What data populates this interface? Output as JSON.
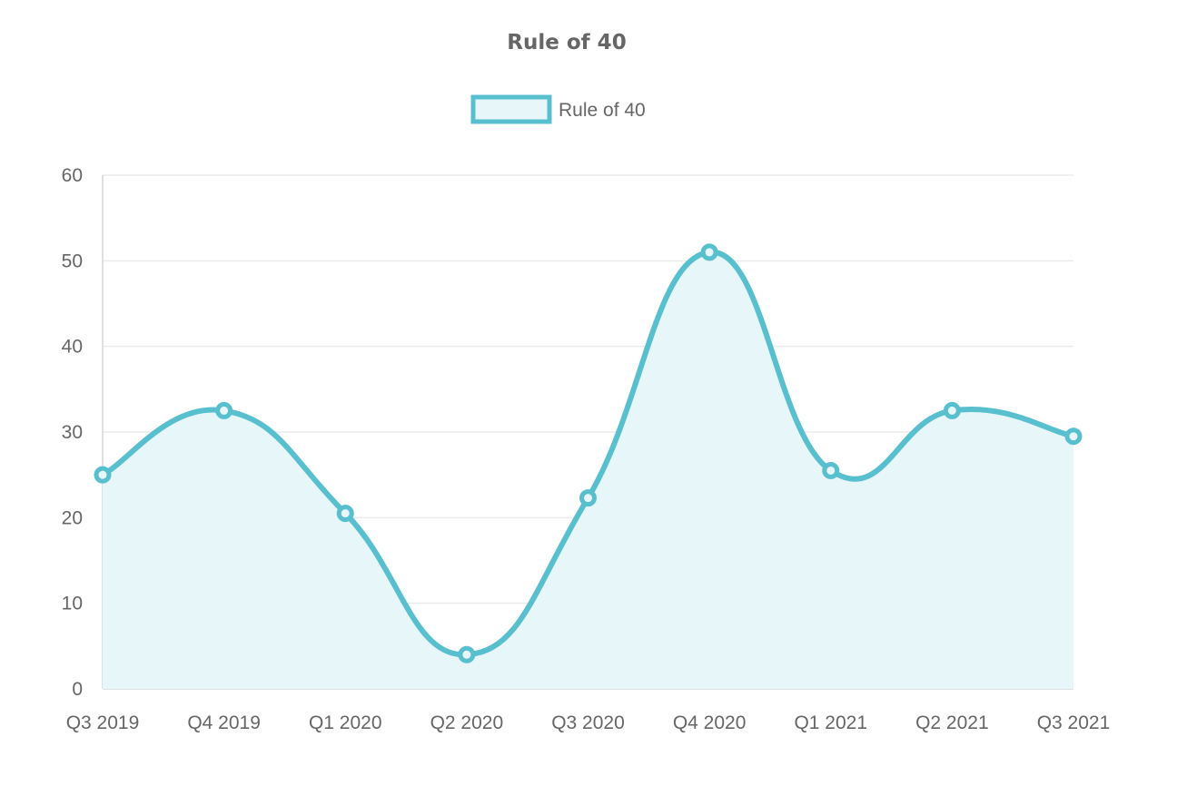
{
  "chart_data": {
    "type": "area",
    "title": "Rule of 40",
    "xlabel": "",
    "ylabel": "",
    "categories": [
      "Q3 2019",
      "Q4 2019",
      "Q1 2020",
      "Q2 2020",
      "Q3 2020",
      "Q4 2020",
      "Q1 2021",
      "Q2 2021",
      "Q3 2021"
    ],
    "series": [
      {
        "name": "Rule of 40",
        "values": [
          25,
          32.5,
          20.5,
          4,
          22.3,
          51,
          25.5,
          32.5,
          29.5
        ]
      }
    ],
    "ylim": [
      0,
      60
    ],
    "yticks": [
      "0",
      "10",
      "20",
      "30",
      "40",
      "50",
      "60"
    ],
    "grid": true,
    "legend_position": "top-center",
    "colors": {
      "line": "#58bfcf",
      "fill": "#e7f6f8",
      "grid": "#ebebeb",
      "text": "#666666"
    }
  }
}
